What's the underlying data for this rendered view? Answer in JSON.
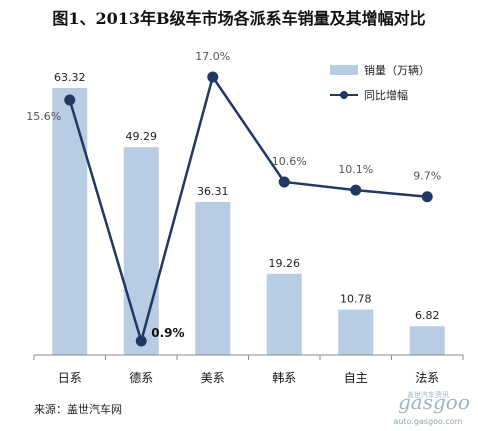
{
  "chart_data": {
    "type": "bar+line",
    "title": "图1、2013年B级车市场各派系车销量及其增幅对比",
    "categories": [
      "日系",
      "德系",
      "美系",
      "韩系",
      "自主",
      "法系"
    ],
    "series": [
      {
        "name": "销量（万辆）",
        "type": "bar",
        "values": [
          63.32,
          49.29,
          36.31,
          19.26,
          10.78,
          6.82
        ],
        "labels": [
          "63.32",
          "49.29",
          "36.31",
          "19.26",
          "10.78",
          "6.82"
        ],
        "color": "#b8cce4"
      },
      {
        "name": "同比增幅",
        "type": "line",
        "values": [
          15.6,
          0.9,
          17.0,
          10.6,
          10.1,
          9.7
        ],
        "labels": [
          "15.6%",
          "0.9%",
          "17.0%",
          "10.6%",
          "10.1%",
          "9.7%"
        ],
        "color": "#1f3864"
      }
    ],
    "legend_position": "top-right",
    "grid": false
  },
  "source": "来源：盖世汽车网",
  "watermark": {
    "logo": "gasgoo",
    "sub": "盖世汽车资讯",
    "url": "auto.gasgoo.com"
  }
}
